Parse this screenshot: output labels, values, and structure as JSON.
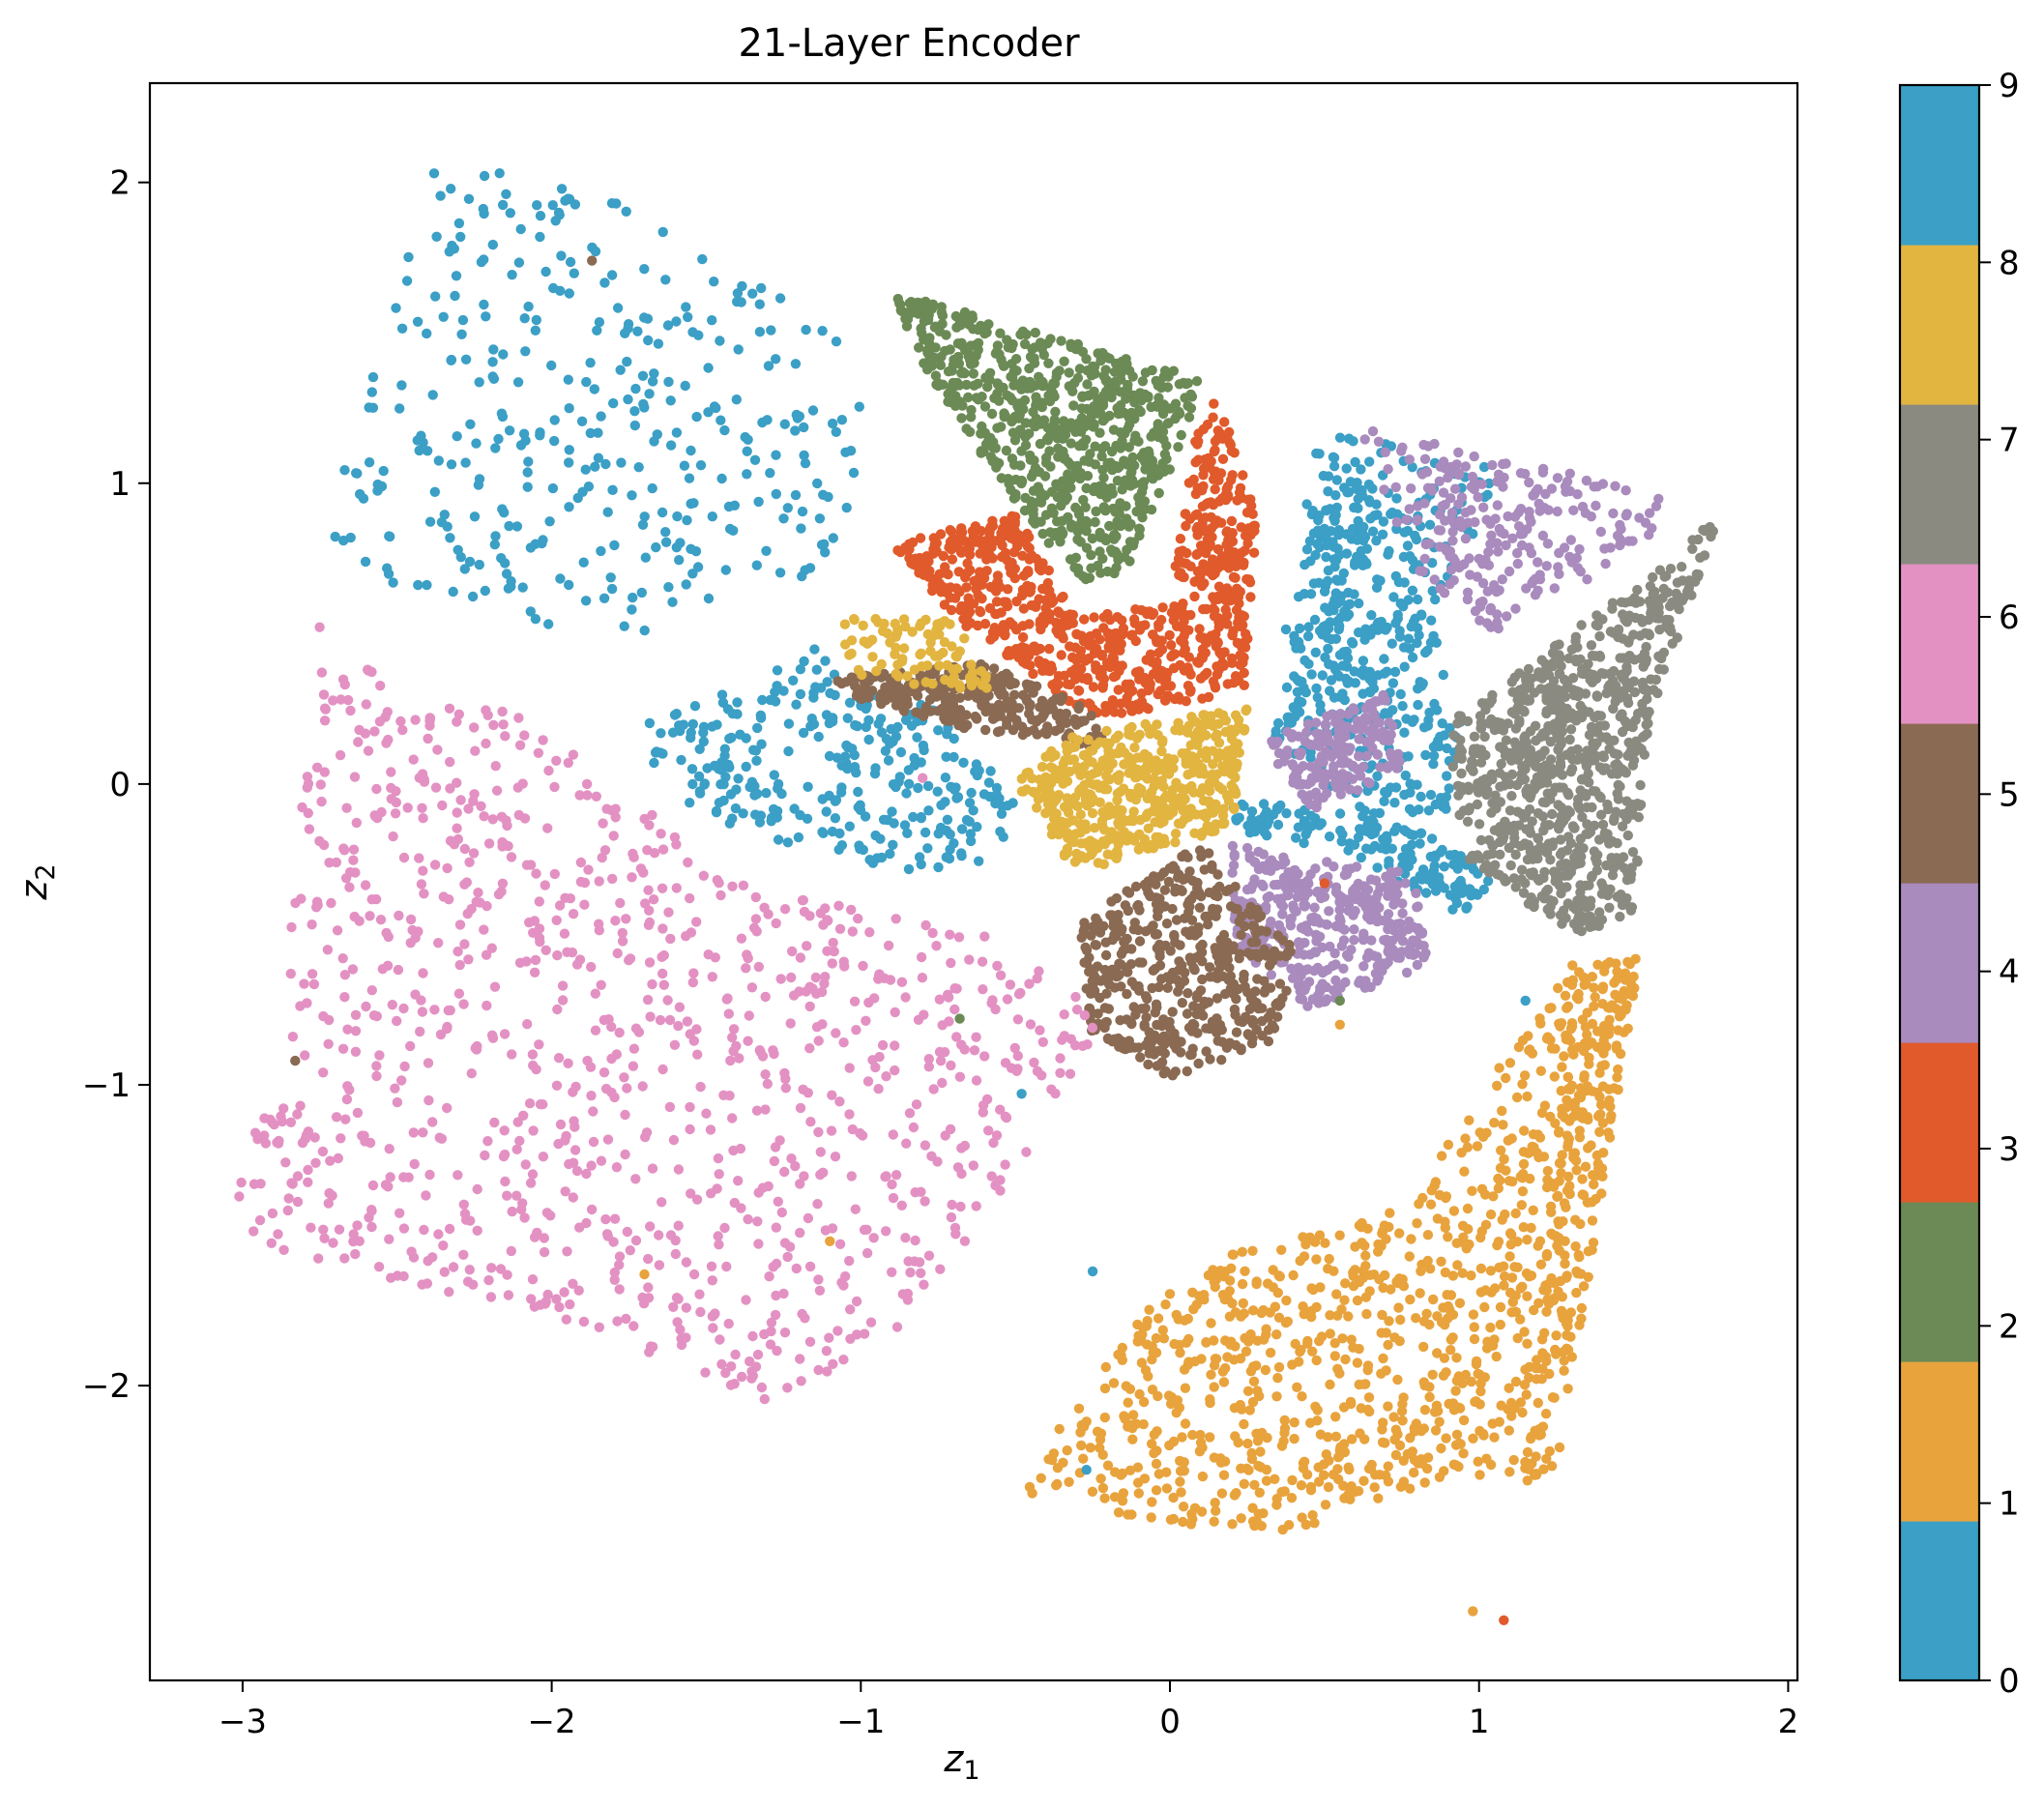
{
  "chart_data": {
    "type": "scatter",
    "title": "21-Layer Encoder",
    "xlabel": "z",
    "xlabel_sub": "1",
    "ylabel": "z",
    "ylabel_sub": "2",
    "xlim": [
      -3.3,
      2.03
    ],
    "ylim": [
      -2.98,
      2.33
    ],
    "xticks": [
      -3,
      -2,
      -1,
      0,
      1,
      2
    ],
    "yticks": [
      -2,
      -1,
      0,
      1,
      2
    ],
    "xtick_labels": [
      "−3",
      "−2",
      "−1",
      "0",
      "1",
      "2"
    ],
    "ytick_labels": [
      "−2",
      "−1",
      "0",
      "1",
      "2"
    ],
    "grid": false,
    "colorbar": {
      "min": 0,
      "max": 9,
      "ticks": [
        "0",
        "1",
        "2",
        "3",
        "4",
        "5",
        "6",
        "7",
        "8",
        "9"
      ]
    },
    "classes": [
      {
        "label": 0,
        "color": "#3b9fc6",
        "regions": [
          {
            "poly": [
              [
                -2.75,
                0.75
              ],
              [
                -2.4,
                2.08
              ],
              [
                -2.0,
                2.0
              ],
              [
                -1.75,
                1.92
              ],
              [
                -0.98,
                1.45
              ],
              [
                -1.05,
                0.75
              ],
              [
                -1.62,
                0.5
              ],
              [
                -2.3,
                0.55
              ]
            ],
            "n": 360
          },
          {
            "poly": [
              [
                -1.7,
                0.2
              ],
              [
                -1.15,
                0.45
              ],
              [
                -0.75,
                0.25
              ],
              [
                -0.5,
                -0.05
              ],
              [
                -0.55,
                -0.25
              ],
              [
                -0.85,
                -0.3
              ],
              [
                -1.4,
                -0.15
              ],
              [
                -1.65,
                -0.05
              ]
            ],
            "n": 300
          },
          {
            "poly": [
              [
                0.43,
                1.0
              ],
              [
                0.5,
                1.2
              ],
              [
                1.05,
                1.05
              ],
              [
                1.05,
                0.9
              ],
              [
                0.82,
                0.55
              ],
              [
                0.5,
                0.3
              ]
            ],
            "n": 180
          },
          {
            "poly": [
              [
                0.3,
                0.2
              ],
              [
                0.55,
                0.6
              ],
              [
                0.85,
                0.55
              ],
              [
                0.95,
                0.2
              ],
              [
                0.9,
                -0.1
              ],
              [
                0.6,
                -0.1
              ]
            ],
            "n": 240
          },
          {
            "poly": [
              [
                0.2,
                -0.05
              ],
              [
                0.75,
                -0.12
              ],
              [
                1.05,
                -0.3
              ],
              [
                0.95,
                -0.45
              ],
              [
                0.55,
                -0.22
              ],
              [
                0.2,
                -0.15
              ]
            ],
            "n": 160
          }
        ]
      },
      {
        "label": 1,
        "color": "#e8a33d",
        "regions": [
          {
            "poly": [
              [
                0.75,
                -1.4
              ],
              [
                1.3,
                -0.6
              ],
              [
                1.52,
                -0.58
              ],
              [
                1.42,
                -1.2
              ],
              [
                1.2,
                -2.3
              ],
              [
                0.9,
                -2.3
              ],
              [
                0.4,
                -2.5
              ],
              [
                -0.1,
                -2.45
              ],
              [
                -0.5,
                -2.35
              ],
              [
                -0.05,
                -1.7
              ],
              [
                0.2,
                -1.55
              ]
            ],
            "n": 950
          },
          {
            "poly": [
              [
                1.3,
                -0.6
              ],
              [
                1.52,
                -0.58
              ],
              [
                1.25,
                -2.3
              ],
              [
                1.15,
                -2.32
              ]
            ],
            "n": 180
          }
        ]
      },
      {
        "label": 2,
        "color": "#6b8a55",
        "regions": [
          {
            "poly": [
              [
                -0.9,
                1.64
              ],
              [
                -0.7,
                1.58
              ],
              [
                0.1,
                1.35
              ],
              [
                0.0,
                1.0
              ],
              [
                -0.15,
                0.7
              ],
              [
                -0.3,
                0.67
              ],
              [
                -0.65,
                1.15
              ],
              [
                -0.78,
                1.35
              ]
            ],
            "n": 720
          }
        ]
      },
      {
        "label": 3,
        "color": "#e05a2c",
        "regions": [
          {
            "poly": [
              [
                -0.9,
                0.8
              ],
              [
                -0.5,
                0.9
              ],
              [
                -0.3,
                0.55
              ],
              [
                0.0,
                0.6
              ],
              [
                0.08,
                1.15
              ],
              [
                0.15,
                1.3
              ],
              [
                0.28,
                0.9
              ],
              [
                0.25,
                0.3
              ],
              [
                -0.25,
                0.22
              ],
              [
                -0.7,
                0.55
              ]
            ],
            "n": 800
          }
        ]
      },
      {
        "label": 4,
        "color": "#a98bbd",
        "regions": [
          {
            "poly": [
              [
                0.6,
                1.2
              ],
              [
                1.6,
                0.96
              ],
              [
                1.55,
                0.8
              ],
              [
                1.05,
                0.5
              ],
              [
                0.8,
                0.7
              ]
            ],
            "n": 240
          },
          {
            "poly": [
              [
                0.18,
                -0.2
              ],
              [
                0.8,
                -0.3
              ],
              [
                0.85,
                -0.6
              ],
              [
                0.45,
                -0.75
              ],
              [
                0.22,
                -0.55
              ]
            ],
            "n": 380
          },
          {
            "poly": [
              [
                0.3,
                0.15
              ],
              [
                0.7,
                0.3
              ],
              [
                0.75,
                0.05
              ],
              [
                0.45,
                -0.1
              ]
            ],
            "n": 180
          }
        ]
      },
      {
        "label": 5,
        "color": "#8a6a52",
        "regions": [
          {
            "poly": [
              [
                -0.3,
                -0.45
              ],
              [
                0.1,
                -0.2
              ],
              [
                0.4,
                -0.55
              ],
              [
                0.35,
                -0.85
              ],
              [
                0.0,
                -0.98
              ],
              [
                -0.25,
                -0.85
              ]
            ],
            "n": 480
          },
          {
            "poly": [
              [
                -1.1,
                0.35
              ],
              [
                -0.6,
                0.4
              ],
              [
                -0.25,
                0.25
              ],
              [
                -0.2,
                0.12
              ],
              [
                -0.65,
                0.18
              ],
              [
                -1.0,
                0.28
              ]
            ],
            "n": 300
          }
        ]
      },
      {
        "label": 6,
        "color": "#e391c3",
        "regions": [
          {
            "poly": [
              [
                -3.05,
                -1.5
              ],
              [
                -2.85,
                -0.5
              ],
              [
                -2.75,
                0.55
              ],
              [
                -2.55,
                0.35
              ],
              [
                -2.0,
                0.2
              ],
              [
                -1.45,
                -0.3
              ],
              [
                -0.55,
                -0.5
              ],
              [
                -0.2,
                -0.75
              ],
              [
                -0.5,
                -1.3
              ],
              [
                -0.9,
                -1.85
              ],
              [
                -1.3,
                -2.05
              ],
              [
                -1.9,
                -1.8
              ],
              [
                -2.7,
                -1.6
              ]
            ],
            "n": 1050
          }
        ]
      },
      {
        "label": 7,
        "color": "#8a8a80",
        "regions": [
          {
            "poly": [
              [
                0.9,
                0.2
              ],
              [
                1.15,
                0.4
              ],
              [
                1.5,
                0.65
              ],
              [
                1.78,
                0.9
              ],
              [
                1.55,
                0.2
              ],
              [
                1.5,
                -0.45
              ],
              [
                1.3,
                -0.5
              ],
              [
                0.95,
                -0.25
              ]
            ],
            "n": 850
          }
        ]
      },
      {
        "label": 8,
        "color": "#e2b440",
        "regions": [
          {
            "poly": [
              [
                -0.5,
                -0.0
              ],
              [
                -0.35,
                0.15
              ],
              [
                -0.1,
                0.2
              ],
              [
                0.25,
                0.25
              ],
              [
                0.2,
                -0.15
              ],
              [
                0.0,
                -0.2
              ],
              [
                -0.3,
                -0.3
              ]
            ],
            "n": 520
          },
          {
            "poly": [
              [
                -1.1,
                0.55
              ],
              [
                -0.7,
                0.55
              ],
              [
                -0.55,
                0.3
              ],
              [
                -1.0,
                0.35
              ]
            ],
            "n": 90
          }
        ]
      },
      {
        "label": 9,
        "color": "#3b9fc6",
        "regions": [
          {
            "poly": [
              [
                0.45,
                0.9
              ],
              [
                0.7,
                0.95
              ],
              [
                0.6,
                0.55
              ],
              [
                0.35,
                0.4
              ]
            ],
            "n": 70
          }
        ]
      }
    ],
    "stray_points": [
      [
        -1.7,
        -1.63,
        1
      ],
      [
        -1.1,
        -1.52,
        1
      ],
      [
        -0.25,
        -1.62,
        0
      ],
      [
        -0.27,
        -2.28,
        0
      ],
      [
        -2.83,
        -0.92,
        5
      ],
      [
        -1.87,
        1.74,
        5
      ],
      [
        -0.8,
        0.02,
        6
      ],
      [
        -0.68,
        -0.78,
        2
      ],
      [
        0.55,
        -0.72,
        2
      ],
      [
        0.5,
        -0.33,
        3
      ],
      [
        -0.3,
        -0.75,
        6
      ],
      [
        0.55,
        -0.8,
        1
      ],
      [
        -0.48,
        -1.03,
        0
      ],
      [
        1.15,
        -0.72,
        0
      ],
      [
        -1.28,
        0.03,
        0
      ],
      [
        0.98,
        -2.75,
        1
      ],
      [
        1.08,
        -2.78,
        3
      ]
    ]
  }
}
